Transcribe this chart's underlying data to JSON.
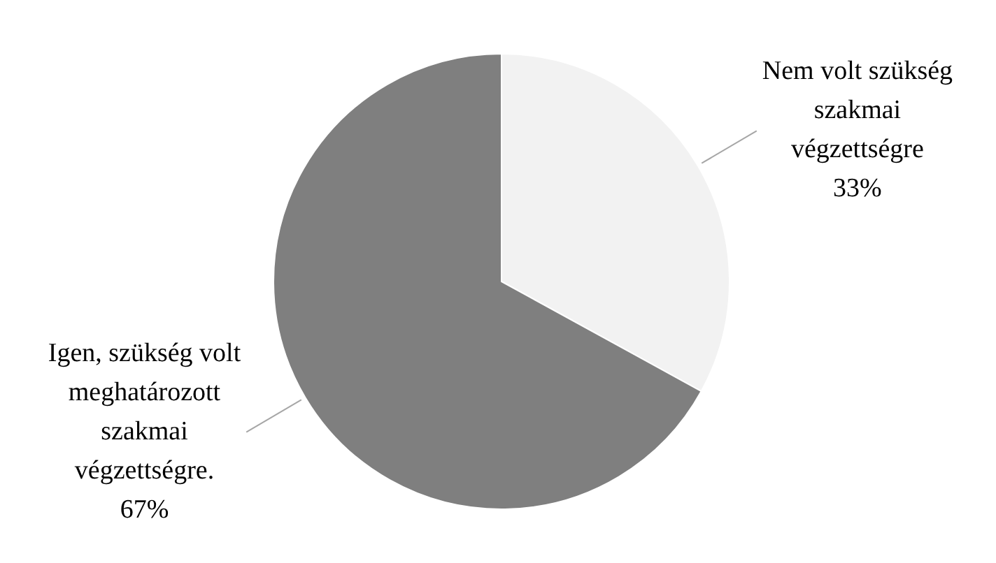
{
  "chart_data": {
    "type": "pie",
    "categories": [
      "Nem volt szükség szakmai végzettségre",
      "Igen, szükség volt meghatározott szakmai végzettségre."
    ],
    "values": [
      33,
      67
    ],
    "value_labels": [
      "33%",
      "67%"
    ],
    "colors": [
      "#f2f2f2",
      "#7f7f7f"
    ],
    "legend": false
  }
}
